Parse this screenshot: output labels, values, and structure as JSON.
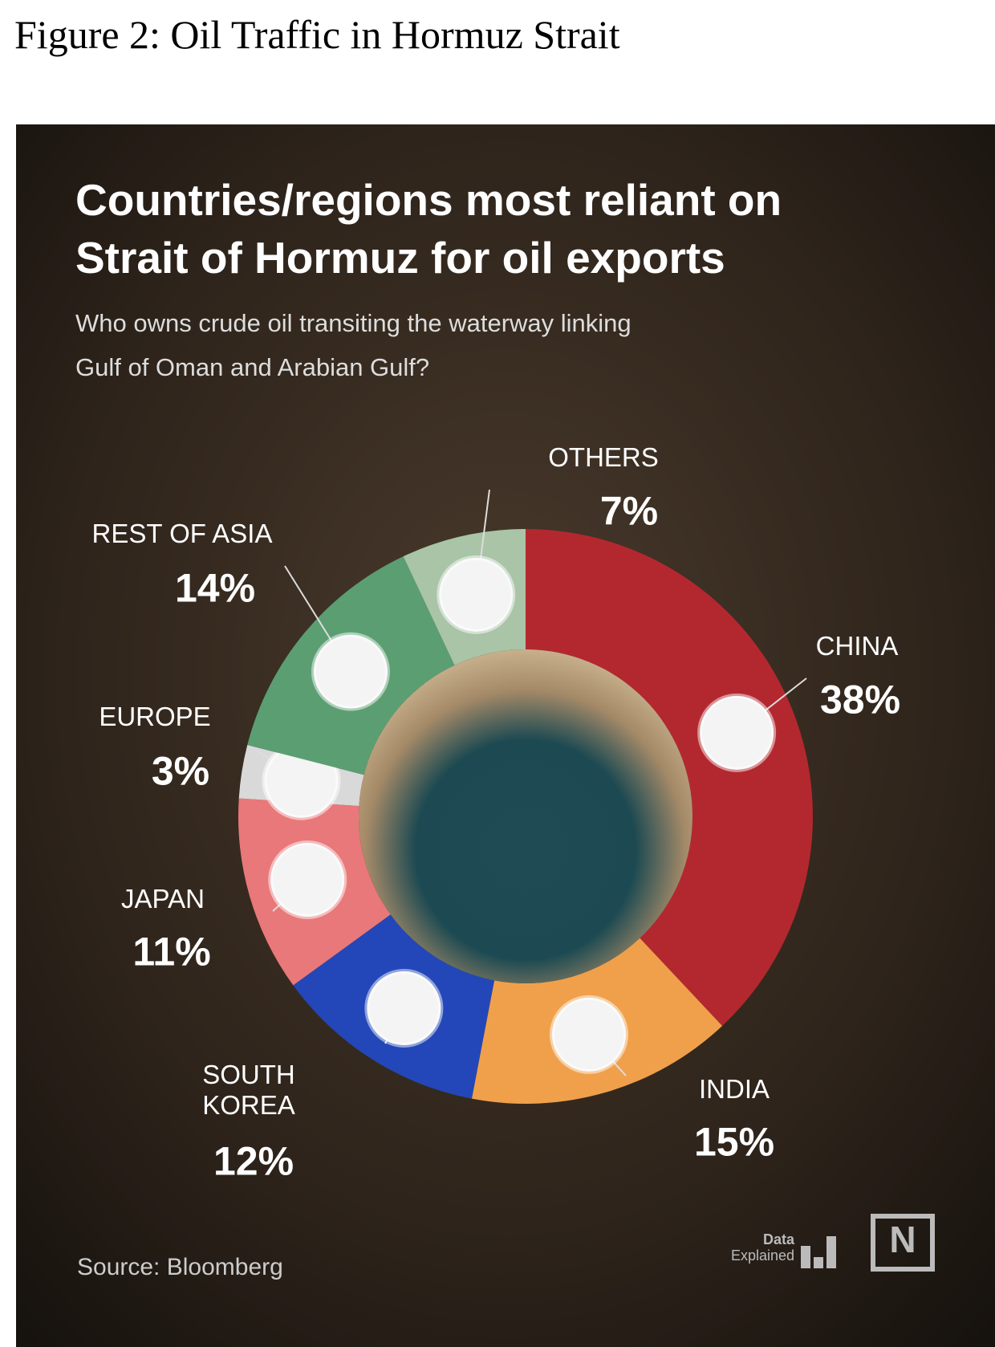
{
  "caption": "Figure 2: Oil Traffic in Hormuz Strait",
  "chart_data": {
    "type": "donut",
    "title": [
      "Countries/regions most reliant on",
      "Strait of Hormuz for oil exports"
    ],
    "subtitle": [
      "Who owns crude oil transiting the waterway linking",
      "Gulf of Oman and Arabian Gulf?"
    ],
    "categories": [
      "CHINA",
      "INDIA",
      "SOUTH KOREA",
      "JAPAN",
      "EUROPE",
      "REST OF ASIA",
      "OTHERS"
    ],
    "values": [
      38,
      15,
      12,
      11,
      3,
      14,
      7
    ],
    "value_labels": [
      "38%",
      "15%",
      "12%",
      "11%",
      "3%",
      "14%",
      "7%"
    ],
    "colors": [
      "#b3282f",
      "#f0a04b",
      "#2347b8",
      "#e8787a",
      "#d9d9d9",
      "#5b9e72",
      "#a9c4a6"
    ],
    "source": "Source: Bloomberg"
  },
  "brand": {
    "line1": "Data",
    "line2": "Explained",
    "mark": "N"
  }
}
